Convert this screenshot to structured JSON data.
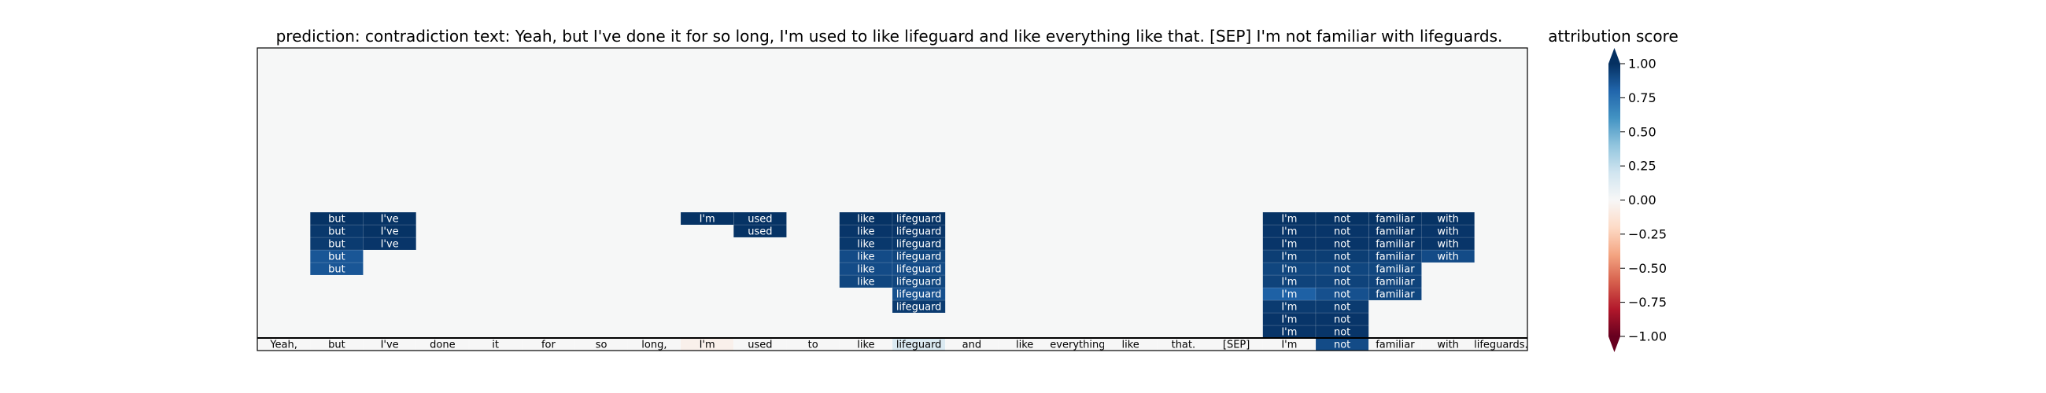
{
  "chart_data": {
    "type": "heatmap",
    "title": "prediction:  contradiction     text:  Yeah, but I've done it for so long, I'm used to like lifeguard and like everything like that. [SEP] I'm not familiar with lifeguards.",
    "colorbar": {
      "label": "attribution score",
      "ticks": [
        "1.00",
        "0.75",
        "0.50",
        "0.25",
        "0.00",
        "−0.25",
        "−0.50",
        "−0.75",
        "−1.00"
      ],
      "tick_values": [
        1.0,
        0.75,
        0.5,
        0.25,
        0.0,
        -0.25,
        -0.5,
        -0.75,
        -1.0
      ],
      "range": [
        -1,
        1
      ],
      "colormap": "RdBu",
      "extend": "both"
    },
    "tokens": [
      "Yeah,",
      "but",
      "I've",
      "done",
      "it",
      "for",
      "so",
      "long,",
      "I'm",
      "used",
      "to",
      "like",
      "lifeguard",
      "and",
      "like",
      "everything",
      "like",
      "that.",
      "[SEP]",
      "I'm",
      "not",
      "familiar",
      "with",
      "lifeguards."
    ],
    "base_row_scores": [
      0.0,
      0.0,
      0.0,
      0.0,
      0.0,
      0.0,
      0.0,
      0.0,
      -0.05,
      0.0,
      0.0,
      0.0,
      0.15,
      0.0,
      0.0,
      0.0,
      0.0,
      0.0,
      0.0,
      0.0,
      0.9,
      0.0,
      0.0,
      0.0
    ],
    "layers": [
      {
        "level": 1,
        "cells": [
          {
            "col": 19,
            "value": 0.98
          },
          {
            "col": 20,
            "value": 0.98
          }
        ]
      },
      {
        "level": 2,
        "cells": [
          {
            "col": 19,
            "value": 0.98
          },
          {
            "col": 20,
            "value": 0.98
          }
        ]
      },
      {
        "level": 3,
        "cells": [
          {
            "col": 12,
            "value": 0.96
          },
          {
            "col": 19,
            "value": 0.96
          },
          {
            "col": 20,
            "value": 0.96
          }
        ]
      },
      {
        "level": 4,
        "cells": [
          {
            "col": 12,
            "value": 0.88
          },
          {
            "col": 19,
            "value": 0.82
          },
          {
            "col": 20,
            "value": 0.88
          },
          {
            "col": 21,
            "value": 0.92
          }
        ]
      },
      {
        "level": 5,
        "cells": [
          {
            "col": 11,
            "value": 0.92
          },
          {
            "col": 12,
            "value": 0.92
          },
          {
            "col": 19,
            "value": 0.93
          },
          {
            "col": 20,
            "value": 0.93
          },
          {
            "col": 21,
            "value": 0.93
          }
        ]
      },
      {
        "level": 6,
        "cells": [
          {
            "col": 1,
            "value": 0.86
          },
          {
            "col": 11,
            "value": 0.9
          },
          {
            "col": 12,
            "value": 0.9
          },
          {
            "col": 19,
            "value": 0.92
          },
          {
            "col": 20,
            "value": 0.92
          },
          {
            "col": 21,
            "value": 0.92
          }
        ]
      },
      {
        "level": 7,
        "cells": [
          {
            "col": 1,
            "value": 0.86
          },
          {
            "col": 11,
            "value": 0.9
          },
          {
            "col": 12,
            "value": 0.92
          },
          {
            "col": 19,
            "value": 0.95
          },
          {
            "col": 20,
            "value": 0.95
          },
          {
            "col": 21,
            "value": 0.94
          },
          {
            "col": 22,
            "value": 0.9
          }
        ]
      },
      {
        "level": 8,
        "cells": [
          {
            "col": 1,
            "value": 0.96
          },
          {
            "col": 2,
            "value": 0.98
          },
          {
            "col": 11,
            "value": 0.97
          },
          {
            "col": 12,
            "value": 0.97
          },
          {
            "col": 19,
            "value": 0.98
          },
          {
            "col": 20,
            "value": 0.98
          },
          {
            "col": 21,
            "value": 0.98
          },
          {
            "col": 22,
            "value": 0.98
          }
        ]
      },
      {
        "level": 9,
        "cells": [
          {
            "col": 1,
            "value": 0.97
          },
          {
            "col": 2,
            "value": 0.99
          },
          {
            "col": 9,
            "value": 0.99
          },
          {
            "col": 11,
            "value": 0.98
          },
          {
            "col": 12,
            "value": 0.98
          },
          {
            "col": 19,
            "value": 0.98
          },
          {
            "col": 20,
            "value": 0.98
          },
          {
            "col": 21,
            "value": 0.98
          },
          {
            "col": 22,
            "value": 0.98
          }
        ]
      },
      {
        "level": 10,
        "cells": [
          {
            "col": 1,
            "value": 0.99
          },
          {
            "col": 2,
            "value": 0.99
          },
          {
            "col": 8,
            "value": 0.99
          },
          {
            "col": 9,
            "value": 0.99
          },
          {
            "col": 11,
            "value": 0.99
          },
          {
            "col": 12,
            "value": 0.99
          },
          {
            "col": 19,
            "value": 0.99
          },
          {
            "col": 20,
            "value": 0.99
          },
          {
            "col": 21,
            "value": 0.99
          },
          {
            "col": 22,
            "value": 0.99
          }
        ]
      }
    ]
  }
}
